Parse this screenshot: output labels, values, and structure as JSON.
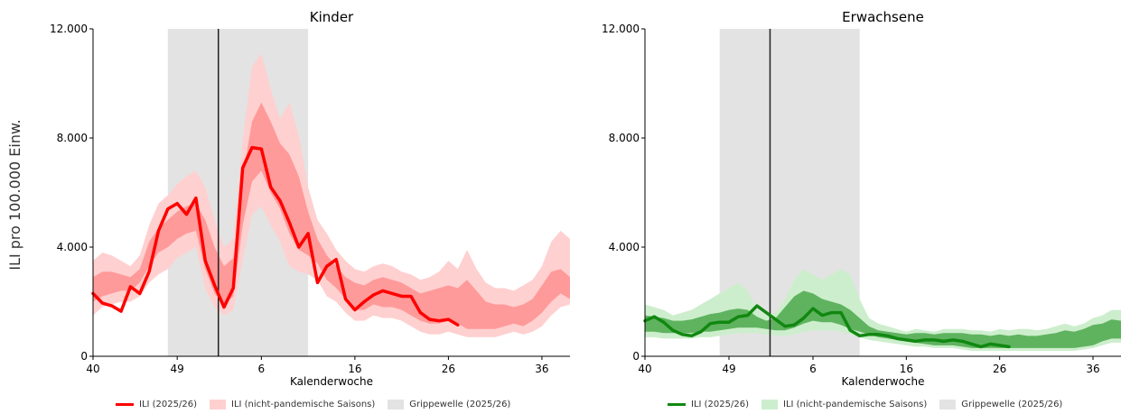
{
  "ylabel": "ILI pro 100.000 Einw.",
  "chart_data": [
    {
      "type": "line",
      "title": "Kinder",
      "xlabel": "Kalenderwoche",
      "ylabel": "ILI pro 100.000 Einw.",
      "x_ticks": [
        "40",
        "49",
        "6",
        "16",
        "26",
        "36"
      ],
      "x_tick_weeks": [
        40,
        49,
        58,
        68,
        78,
        88
      ],
      "y_ticks": [
        "0",
        "4.000",
        "8.000",
        "12.000"
      ],
      "ylim": [
        0,
        12000
      ],
      "xlim": [
        40,
        91
      ],
      "grid": false,
      "colors": {
        "line": "#ff0000",
        "outer_band": "#ffd0d0",
        "inner_band": "#ff9a9a",
        "flu_wave": "#e3e3e3"
      },
      "flu_wave_weeks": [
        48,
        63
      ],
      "vertical_line_week": 53.4,
      "series": [
        {
          "name": "ILI (2025/26)",
          "weeks": [
            40,
            41,
            42,
            43,
            44,
            45,
            46,
            47,
            48,
            49,
            50,
            51,
            52,
            53,
            54,
            55,
            56,
            57,
            58,
            59,
            60,
            61,
            62,
            63,
            64,
            65,
            66,
            67,
            68,
            69,
            70,
            71,
            72,
            73,
            74,
            75,
            76,
            77,
            78,
            79
          ],
          "values": [
            2300,
            1950,
            1850,
            1650,
            2550,
            2300,
            3100,
            4600,
            5400,
            5600,
            5200,
            5800,
            3500,
            2600,
            1800,
            2500,
            6900,
            7650,
            7600,
            6200,
            5700,
            4900,
            4000,
            4500,
            2700,
            3300,
            3550,
            2100,
            1700,
            2000,
            2250,
            2400,
            2300,
            2200,
            2200,
            1600,
            1350,
            1300,
            1350,
            1150
          ]
        },
        {
          "name": "ILI (nicht-pandemische Saisons)",
          "band": "outer",
          "weeks": [
            40,
            41,
            42,
            43,
            44,
            45,
            46,
            47,
            48,
            49,
            50,
            51,
            52,
            53,
            54,
            55,
            56,
            57,
            58,
            59,
            60,
            61,
            62,
            63,
            64,
            65,
            66,
            67,
            68,
            69,
            70,
            71,
            72,
            73,
            74,
            75,
            76,
            77,
            78,
            79,
            80,
            81,
            82,
            83,
            84,
            85,
            86,
            87,
            88,
            89,
            90,
            91
          ],
          "low": [
            1500,
            1800,
            1900,
            2000,
            2000,
            2200,
            2700,
            3000,
            3200,
            3600,
            3800,
            4000,
            2500,
            1800,
            1500,
            1700,
            3500,
            5200,
            5500,
            4800,
            4200,
            3300,
            3100,
            3000,
            2800,
            2200,
            2000,
            1600,
            1300,
            1300,
            1500,
            1400,
            1400,
            1300,
            1100,
            900,
            800,
            800,
            900,
            800,
            700,
            700,
            700,
            700,
            800,
            900,
            800,
            900,
            1100,
            1500,
            1800,
            1900
          ],
          "high": [
            3500,
            3800,
            3700,
            3500,
            3300,
            3700,
            4800,
            5600,
            5900,
            6300,
            6600,
            6800,
            6200,
            5000,
            4000,
            4300,
            7900,
            10600,
            11100,
            9800,
            8700,
            9300,
            8100,
            6200,
            5000,
            4500,
            3900,
            3500,
            3200,
            3100,
            3300,
            3400,
            3300,
            3100,
            3000,
            2800,
            2900,
            3100,
            3500,
            3200,
            3900,
            3200,
            2700,
            2500,
            2500,
            2400,
            2600,
            2800,
            3300,
            4200,
            4600,
            4300
          ]
        },
        {
          "name": "ILI (nicht-pandemische Saisons)",
          "band": "inner",
          "weeks": [
            40,
            41,
            42,
            43,
            44,
            45,
            46,
            47,
            48,
            49,
            50,
            51,
            52,
            53,
            54,
            55,
            56,
            57,
            58,
            59,
            60,
            61,
            62,
            63,
            64,
            65,
            66,
            67,
            68,
            69,
            70,
            71,
            72,
            73,
            74,
            75,
            76,
            77,
            78,
            79,
            80,
            81,
            82,
            83,
            84,
            85,
            86,
            87,
            88,
            89,
            90,
            91
          ],
          "low": [
            2000,
            2200,
            2300,
            2400,
            2400,
            2700,
            3300,
            3800,
            4000,
            4300,
            4500,
            4600,
            3200,
            2300,
            1900,
            2200,
            4800,
            6400,
            6800,
            6000,
            5400,
            4500,
            3900,
            3700,
            3400,
            2800,
            2500,
            2100,
            1700,
            1700,
            1900,
            1800,
            1800,
            1700,
            1500,
            1300,
            1200,
            1200,
            1300,
            1200,
            1000,
            1000,
            1000,
            1000,
            1100,
            1200,
            1100,
            1300,
            1600,
            2000,
            2300,
            2100
          ],
          "high": [
            2900,
            3100,
            3100,
            3000,
            2900,
            3200,
            4200,
            4700,
            5000,
            5300,
            5500,
            5600,
            5000,
            4000,
            3300,
            3600,
            6600,
            8600,
            9300,
            8600,
            7800,
            7400,
            6600,
            5300,
            4300,
            3700,
            3300,
            2900,
            2700,
            2600,
            2800,
            2900,
            2800,
            2700,
            2500,
            2300,
            2400,
            2500,
            2600,
            2500,
            2800,
            2400,
            2000,
            1900,
            1900,
            1800,
            1900,
            2100,
            2600,
            3100,
            3200,
            2900
          ]
        }
      ],
      "legend": [
        "ILI (2025/26)",
        "ILI (nicht-pandemische Saisons)",
        "Grippewelle (2025/26)"
      ]
    },
    {
      "type": "line",
      "title": "Erwachsene",
      "xlabel": "Kalenderwoche",
      "ylabel": "ILI pro 100.000 Einw.",
      "x_ticks": [
        "40",
        "49",
        "6",
        "16",
        "26",
        "36"
      ],
      "x_tick_weeks": [
        40,
        49,
        58,
        68,
        78,
        88
      ],
      "y_ticks": [
        "0",
        "4.000",
        "8.000",
        "12.000"
      ],
      "ylim": [
        0,
        12000
      ],
      "xlim": [
        40,
        91
      ],
      "grid": false,
      "colors": {
        "line": "#118811",
        "outer_band": "#cdeecd",
        "inner_band": "#5fb35f",
        "flu_wave": "#e3e3e3"
      },
      "flu_wave_weeks": [
        48,
        63
      ],
      "vertical_line_week": 53.4,
      "series": [
        {
          "name": "ILI (2025/26)",
          "weeks": [
            40,
            41,
            42,
            43,
            44,
            45,
            46,
            47,
            48,
            49,
            50,
            51,
            52,
            53,
            54,
            55,
            56,
            57,
            58,
            59,
            60,
            61,
            62,
            63,
            64,
            65,
            66,
            67,
            68,
            69,
            70,
            71,
            72,
            73,
            74,
            75,
            76,
            77,
            78,
            79
          ],
          "values": [
            1300,
            1450,
            1250,
            950,
            800,
            750,
            900,
            1200,
            1250,
            1250,
            1450,
            1500,
            1850,
            1600,
            1350,
            1100,
            1150,
            1400,
            1750,
            1500,
            1600,
            1600,
            950,
            750,
            800,
            800,
            750,
            650,
            600,
            550,
            600,
            600,
            550,
            600,
            550,
            450,
            350,
            450,
            400,
            350
          ]
        },
        {
          "name": "ILI (nicht-pandemische Saisons)",
          "band": "outer",
          "weeks": [
            40,
            41,
            42,
            43,
            44,
            45,
            46,
            47,
            48,
            49,
            50,
            51,
            52,
            53,
            54,
            55,
            56,
            57,
            58,
            59,
            60,
            61,
            62,
            63,
            64,
            65,
            66,
            67,
            68,
            69,
            70,
            71,
            72,
            73,
            74,
            75,
            76,
            77,
            78,
            79,
            80,
            81,
            82,
            83,
            84,
            85,
            86,
            87,
            88,
            89,
            90,
            91
          ],
          "low": [
            700,
            700,
            650,
            650,
            650,
            650,
            700,
            700,
            750,
            800,
            850,
            850,
            850,
            800,
            750,
            750,
            800,
            900,
            950,
            950,
            950,
            900,
            800,
            700,
            600,
            550,
            500,
            450,
            400,
            350,
            350,
            300,
            300,
            300,
            250,
            200,
            200,
            200,
            200,
            200,
            200,
            200,
            200,
            200,
            200,
            200,
            200,
            250,
            300,
            400,
            500,
            500
          ],
          "high": [
            1900,
            1800,
            1700,
            1500,
            1600,
            1700,
            1900,
            2100,
            2300,
            2500,
            2700,
            2400,
            1700,
            1500,
            1600,
            2100,
            2800,
            3200,
            3000,
            2800,
            3000,
            3200,
            3000,
            2100,
            1400,
            1200,
            1100,
            1000,
            900,
            1000,
            950,
            900,
            1000,
            1000,
            1000,
            950,
            950,
            900,
            1000,
            950,
            1000,
            1000,
            950,
            1000,
            1100,
            1200,
            1100,
            1200,
            1400,
            1500,
            1700,
            1700
          ]
        },
        {
          "name": "ILI (nicht-pandemische Saisons)",
          "band": "inner",
          "weeks": [
            40,
            41,
            42,
            43,
            44,
            45,
            46,
            47,
            48,
            49,
            50,
            51,
            52,
            53,
            54,
            55,
            56,
            57,
            58,
            59,
            60,
            61,
            62,
            63,
            64,
            65,
            66,
            67,
            68,
            69,
            70,
            71,
            72,
            73,
            74,
            75,
            76,
            77,
            78,
            79,
            80,
            81,
            82,
            83,
            84,
            85,
            86,
            87,
            88,
            89,
            90,
            91
          ],
          "low": [
            900,
            900,
            850,
            850,
            850,
            850,
            900,
            900,
            950,
            1000,
            1050,
            1050,
            1050,
            1000,
            950,
            950,
            1050,
            1200,
            1300,
            1250,
            1250,
            1150,
            1000,
            900,
            800,
            700,
            650,
            600,
            550,
            500,
            450,
            400,
            400,
            400,
            350,
            300,
            300,
            300,
            300,
            300,
            300,
            300,
            300,
            300,
            300,
            300,
            300,
            350,
            400,
            550,
            650,
            650
          ],
          "high": [
            1500,
            1450,
            1400,
            1300,
            1300,
            1350,
            1450,
            1550,
            1600,
            1700,
            1750,
            1700,
            1450,
            1300,
            1400,
            1800,
            2200,
            2400,
            2300,
            2100,
            2000,
            1900,
            1700,
            1400,
            1100,
            950,
            900,
            850,
            800,
            850,
            850,
            800,
            850,
            850,
            850,
            800,
            800,
            750,
            800,
            750,
            800,
            750,
            750,
            800,
            850,
            950,
            900,
            1000,
            1150,
            1200,
            1350,
            1300
          ]
        }
      ],
      "legend": [
        "ILI (2025/26)",
        "ILI (nicht-pandemische Saisons)",
        "Grippewelle (2025/26)"
      ]
    }
  ]
}
